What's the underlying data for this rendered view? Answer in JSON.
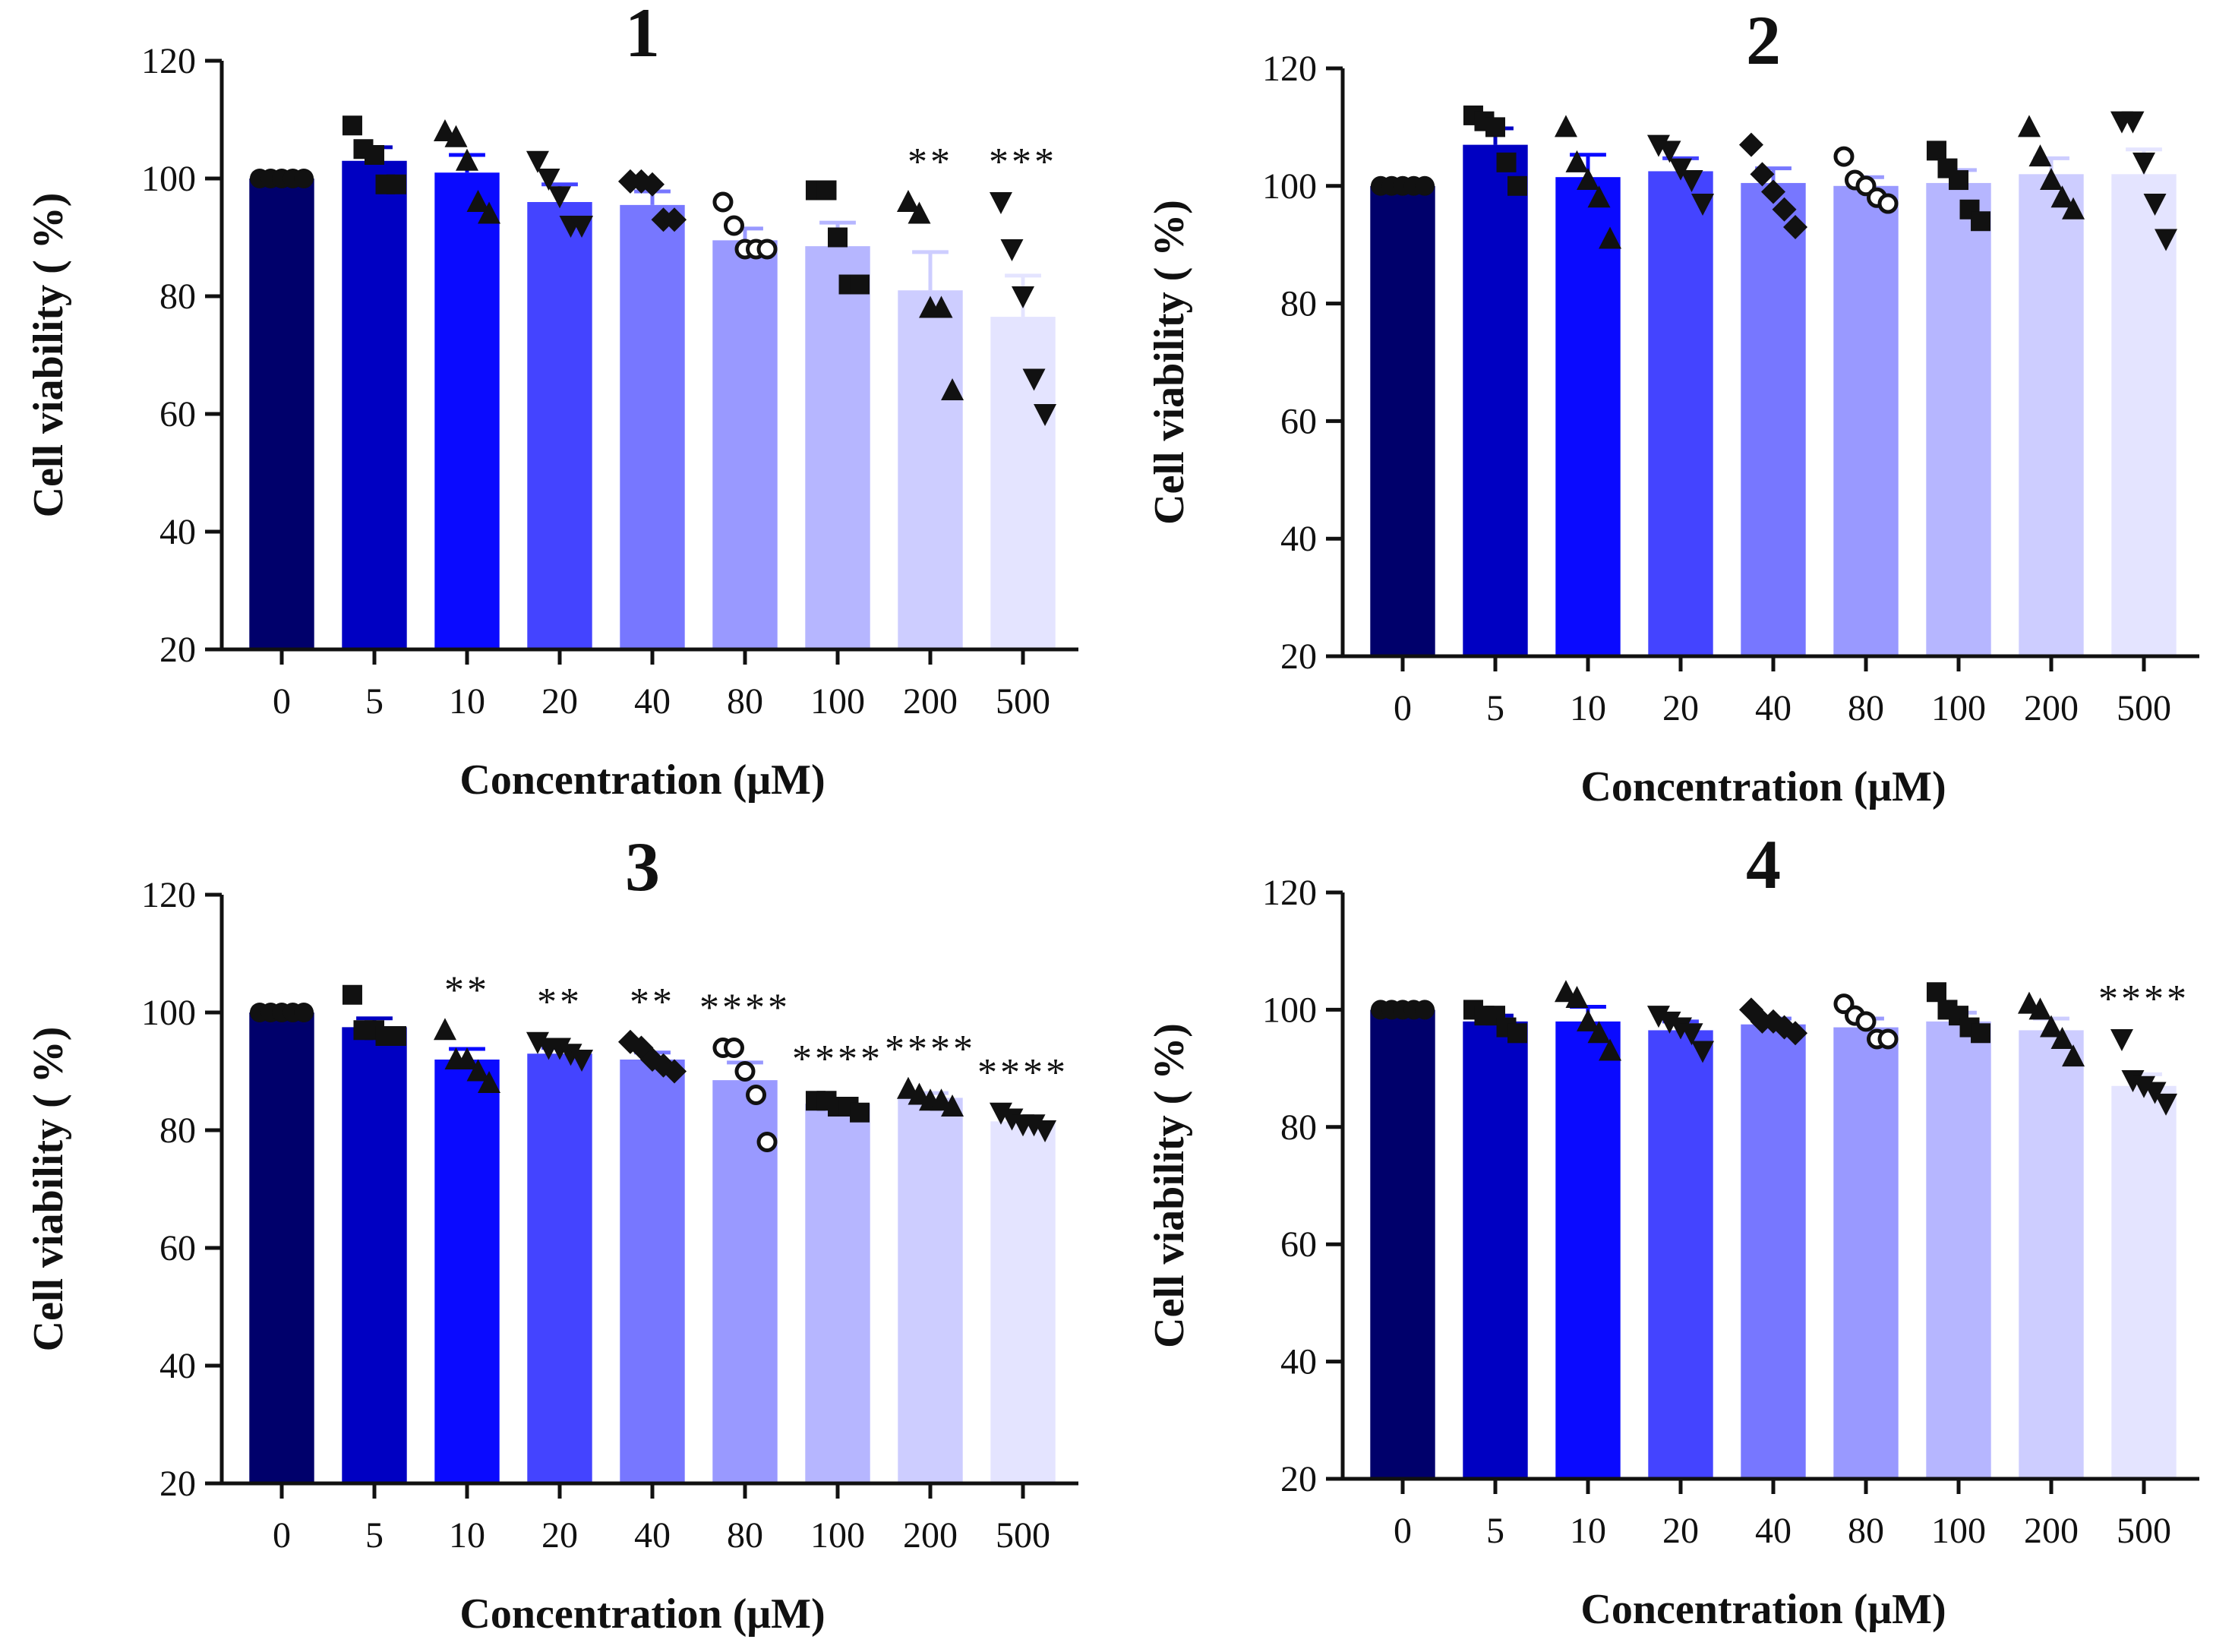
{
  "chart_data": [
    {
      "type": "bar",
      "title": "1",
      "xlabel": "Concentration (μM)",
      "ylabel": "Cell viability ( %)",
      "ylim": [
        20,
        120
      ],
      "yticks": [
        "20",
        "40",
        "60",
        "80",
        "100",
        "120"
      ],
      "categories": [
        "0",
        "5",
        "10",
        "20",
        "40",
        "80",
        "100",
        "200",
        "500"
      ],
      "values": [
        100,
        103,
        101,
        96,
        95.5,
        89.5,
        88.5,
        81,
        76.5
      ],
      "sem": [
        0,
        2.3,
        3,
        3,
        2.3,
        2,
        4,
        6.5,
        7
      ],
      "significance": [
        "",
        "",
        "",
        "",
        "",
        "",
        "",
        "**",
        "***"
      ],
      "points": [
        [
          100,
          100,
          100,
          100,
          100
        ],
        [
          109,
          105,
          104,
          99,
          99
        ],
        [
          108,
          107,
          103,
          96,
          94
        ],
        [
          103,
          100,
          97,
          92,
          92
        ],
        [
          99.5,
          99.5,
          99,
          93,
          93
        ],
        [
          96,
          92,
          88,
          88,
          88
        ],
        [
          98,
          98,
          90,
          82,
          82
        ],
        [
          96,
          94,
          78,
          78,
          64
        ],
        [
          96,
          88,
          80,
          66,
          60
        ]
      ],
      "markers": [
        "circle",
        "square",
        "triangle",
        "triangle-down",
        "diamond",
        "circle-open",
        "square",
        "triangle",
        "triangle-down"
      ]
    },
    {
      "type": "bar",
      "title": "2",
      "xlabel": "Concentration (μM)",
      "ylabel": "Cell viability ( %)",
      "ylim": [
        20,
        120
      ],
      "yticks": [
        "20",
        "40",
        "60",
        "80",
        "100",
        "120"
      ],
      "categories": [
        "0",
        "5",
        "10",
        "20",
        "40",
        "80",
        "100",
        "200",
        "500"
      ],
      "values": [
        100,
        107,
        101.5,
        102.5,
        100.5,
        100,
        100.5,
        102,
        102
      ],
      "sem": [
        0,
        2.8,
        3.8,
        2.2,
        2.5,
        1.5,
        2.2,
        2.7,
        4.2
      ],
      "significance": [
        "",
        "",
        "",
        "",
        "",
        "",
        "",
        "",
        ""
      ],
      "points": [
        [
          100,
          100,
          100,
          100,
          100
        ],
        [
          112,
          111,
          110,
          104,
          100
        ],
        [
          110,
          104,
          101,
          98,
          91
        ],
        [
          107,
          106,
          103,
          101,
          97
        ],
        [
          107,
          102,
          99,
          96,
          93
        ],
        [
          105,
          101,
          100,
          98,
          97
        ],
        [
          106,
          103,
          101,
          96,
          94
        ],
        [
          110,
          105,
          101,
          98,
          96
        ],
        [
          111,
          111,
          104,
          97,
          91
        ]
      ],
      "markers": [
        "circle",
        "square",
        "triangle",
        "triangle-down",
        "diamond",
        "circle-open",
        "square",
        "triangle",
        "triangle-down"
      ]
    },
    {
      "type": "bar",
      "title": "3",
      "xlabel": "Concentration (μM)",
      "ylabel": "Cell viability ( %)",
      "ylim": [
        20,
        120
      ],
      "yticks": [
        "20",
        "40",
        "60",
        "80",
        "100",
        "120"
      ],
      "categories": [
        "0",
        "5",
        "10",
        "20",
        "40",
        "80",
        "100",
        "200",
        "500"
      ],
      "values": [
        100,
        97.5,
        92,
        93,
        92,
        88.5,
        84.5,
        85.5,
        81.5
      ],
      "sem": [
        0,
        1.5,
        1.8,
        1,
        1.2,
        3,
        0.8,
        0.8,
        0.6
      ],
      "significance": [
        "",
        "",
        "**",
        "**",
        "**",
        "****",
        "****",
        "****",
        "****"
      ],
      "points": [
        [
          100,
          100,
          100,
          100,
          100
        ],
        [
          103,
          97,
          97,
          96,
          96
        ],
        [
          97,
          92,
          92,
          90,
          88
        ],
        [
          95,
          94,
          94,
          93,
          92
        ],
        [
          95,
          94,
          92,
          91,
          90
        ],
        [
          94,
          94,
          90,
          86,
          78
        ],
        [
          85,
          85,
          84,
          84,
          83
        ],
        [
          87,
          86,
          85,
          85,
          84
        ],
        [
          83,
          82,
          81,
          81,
          80
        ]
      ],
      "markers": [
        "circle",
        "square",
        "triangle",
        "triangle-down",
        "diamond",
        "circle-open",
        "square",
        "triangle",
        "triangle-down"
      ]
    },
    {
      "type": "bar",
      "title": "4",
      "xlabel": "Concentration (μM)",
      "ylabel": "Cell viability ( %)",
      "ylim": [
        20,
        120
      ],
      "yticks": [
        "20",
        "40",
        "60",
        "80",
        "100",
        "120"
      ],
      "categories": [
        "0",
        "5",
        "10",
        "20",
        "40",
        "80",
        "100",
        "200",
        "500"
      ],
      "values": [
        100,
        98,
        98,
        96.5,
        97.5,
        97,
        98,
        96.5,
        87
      ],
      "sem": [
        0,
        1,
        2.5,
        1.5,
        1,
        1.5,
        1.5,
        2,
        2
      ],
      "significance": [
        "",
        "",
        "",
        "",
        "",
        "",
        "",
        "",
        "****"
      ],
      "points": [
        [
          100,
          100,
          100,
          100,
          100
        ],
        [
          100,
          99,
          99,
          97,
          96
        ],
        [
          103,
          102,
          98,
          96,
          93
        ],
        [
          99,
          98,
          97,
          96,
          93
        ],
        [
          100,
          98,
          98,
          97,
          96
        ],
        [
          101,
          99,
          98,
          95,
          95
        ],
        [
          103,
          100,
          99,
          97,
          96
        ],
        [
          101,
          100,
          97,
          95,
          92
        ],
        [
          95,
          88,
          87,
          86,
          84
        ]
      ],
      "markers": [
        "circle",
        "square",
        "triangle",
        "triangle-down",
        "diamond",
        "circle-open",
        "square",
        "triangle",
        "triangle-down"
      ]
    }
  ],
  "style": {
    "bar_colors": [
      "#00006b",
      "#0000c2",
      "#0a0aff",
      "#4444ff",
      "#7777ff",
      "#9999ff",
      "#b6b6ff",
      "#cdcdff",
      "#e4e4ff"
    ],
    "axis_color": "#111111",
    "marker_color": "#111111"
  }
}
